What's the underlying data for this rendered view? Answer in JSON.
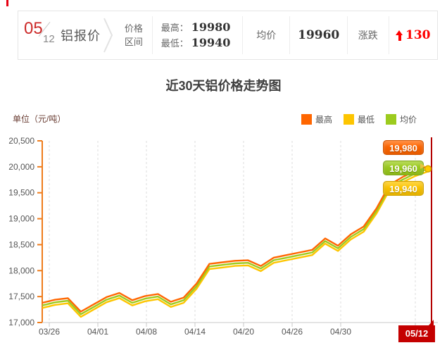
{
  "page_title": "铝报价",
  "quote_bar": {
    "date": {
      "month": "05",
      "day": "12"
    },
    "title": "铝报价",
    "range_label_line1": "价格",
    "range_label_line2": "区间",
    "high_label": "最高：",
    "high_value": "19980",
    "low_label": "最低：",
    "low_value": "19940",
    "avg_label": "均价",
    "avg_value": "19960",
    "change_label": "涨跌",
    "change_direction": "up",
    "change_value": "130",
    "change_color": "#fe0000"
  },
  "chart": {
    "title": "近30天铝价格走势图",
    "unit_label": "单位（元/吨）",
    "legend": [
      {
        "label": "最高",
        "color": "#ff6600"
      },
      {
        "label": "最低",
        "color": "#fdc500"
      },
      {
        "label": "均价",
        "color": "#9ccb1e"
      }
    ],
    "end_badges": [
      {
        "text": "19,980",
        "color": "#ff6600"
      },
      {
        "text": "19,960",
        "color": "#9ccb1e"
      },
      {
        "text": "19,940",
        "color": "#fdc500"
      }
    ],
    "today_label": "05/12",
    "accent_colors": {
      "y_axis": "#ef7c1b",
      "today_line": "#b30000",
      "flag": "#c40000"
    }
  },
  "chart_data": {
    "type": "line",
    "title": "近30天铝价格走势图",
    "ylabel": "单位（元/吨）",
    "ylim": [
      17000,
      20500
    ],
    "ytick_labels": [
      "20,500",
      "20,000",
      "19,500",
      "19,000",
      "18,500",
      "18,000",
      "17,500",
      "17,000"
    ],
    "x_labels": [
      "03/26",
      "04/01",
      "04/08",
      "04/14",
      "04/20",
      "04/26",
      "04/30",
      "05/12"
    ],
    "grid": "vertical-dashed",
    "legend_position": "top-right",
    "series": [
      {
        "name": "最高",
        "color": "#ff6600",
        "values": [
          17350,
          17410,
          17440,
          17180,
          17320,
          17460,
          17540,
          17400,
          17480,
          17520,
          17370,
          17450,
          17720,
          18100,
          18130,
          18160,
          18170,
          18060,
          18220,
          18270,
          18320,
          18370,
          18590,
          18450,
          18670,
          18820,
          19170,
          19620,
          19770,
          19890,
          19980
        ]
      },
      {
        "name": "均价",
        "color": "#9ccb1e",
        "values": [
          17330,
          17390,
          17420,
          17160,
          17300,
          17440,
          17520,
          17380,
          17460,
          17500,
          17350,
          17430,
          17700,
          18080,
          18110,
          18140,
          18150,
          18040,
          18200,
          18250,
          18300,
          18350,
          18570,
          18430,
          18650,
          18800,
          19150,
          19600,
          19750,
          19870,
          19960
        ]
      },
      {
        "name": "最低",
        "color": "#fdc500",
        "values": [
          17310,
          17370,
          17400,
          17140,
          17280,
          17420,
          17500,
          17360,
          17440,
          17480,
          17330,
          17410,
          17680,
          18060,
          18090,
          18120,
          18130,
          18020,
          18180,
          18230,
          18280,
          18330,
          18550,
          18410,
          18630,
          18780,
          19130,
          19580,
          19730,
          19850,
          19940
        ]
      }
    ]
  }
}
